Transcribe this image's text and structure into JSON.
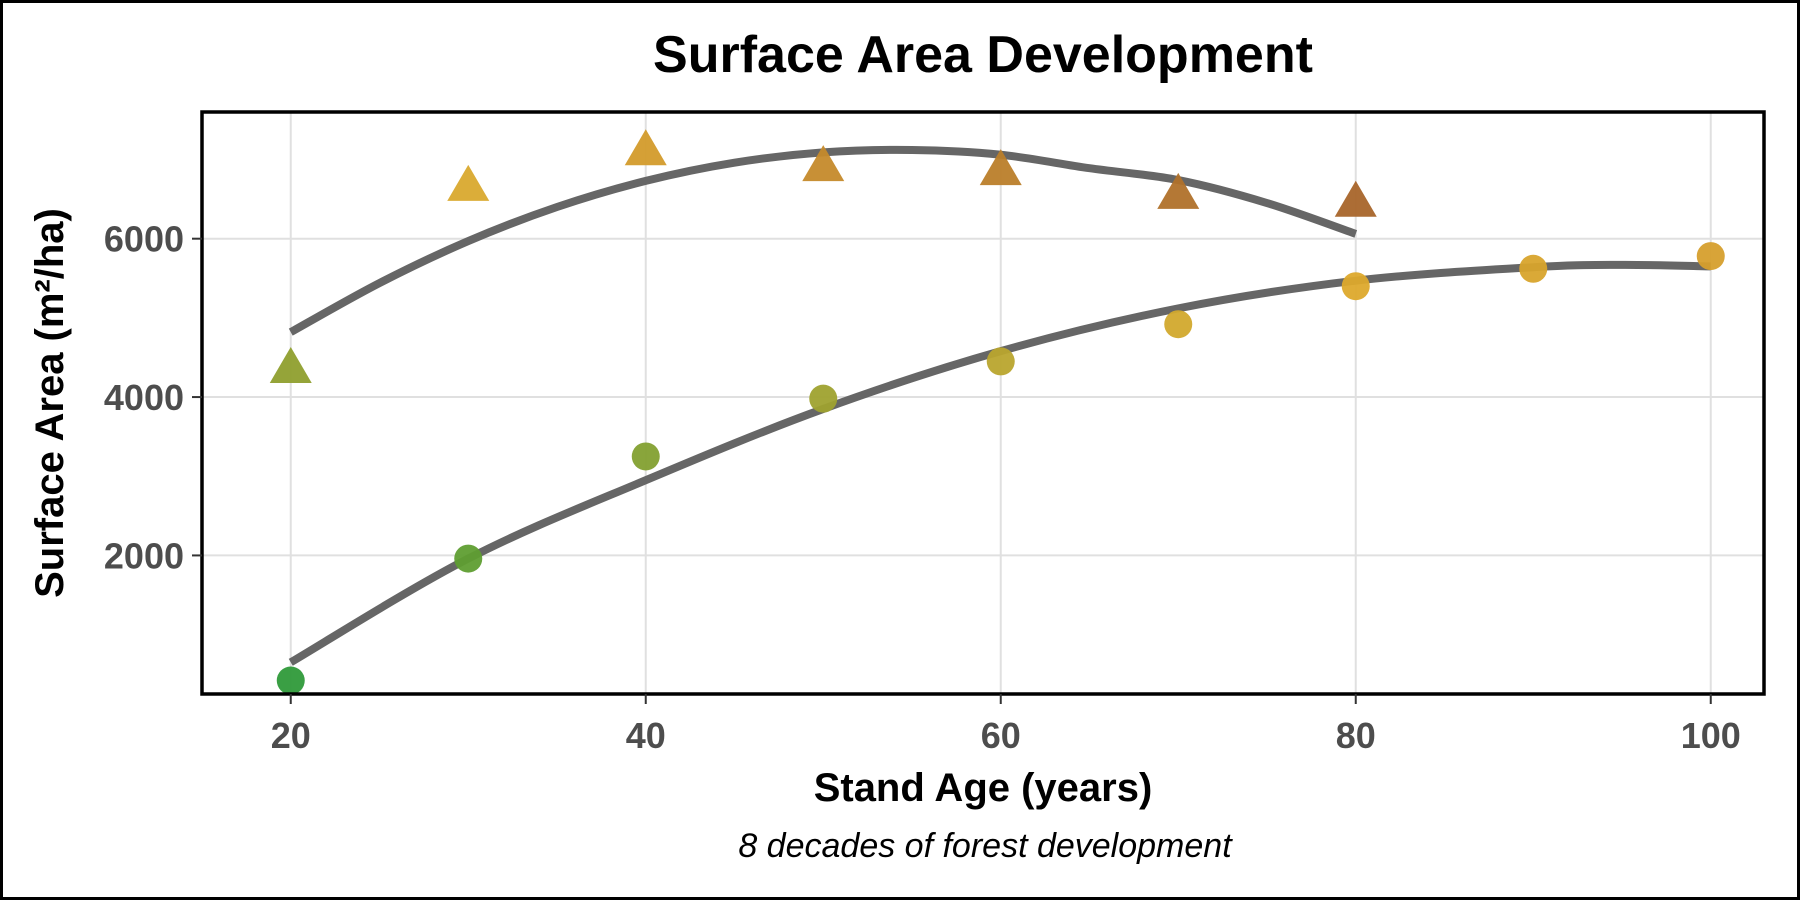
{
  "chart_data": {
    "type": "scatter",
    "title": "Surface Area Development",
    "xlabel": "Stand Age (years)",
    "ylabel": "Surface Area (m²/ha)",
    "caption": "8 decades of forest development",
    "xlim": [
      15,
      103
    ],
    "ylim": [
      250,
      7600
    ],
    "x_ticks": [
      20,
      40,
      60,
      80,
      100
    ],
    "y_ticks": [
      2000,
      4000,
      6000
    ],
    "grid": true,
    "legend": "none",
    "series": [
      {
        "marker": "triangle",
        "points": [
          {
            "x": 20,
            "y": 4350,
            "color": "#8f9f2e"
          },
          {
            "x": 30,
            "y": 6650,
            "color": "#d9a92e"
          },
          {
            "x": 40,
            "y": 7100,
            "color": "#d39b2b"
          },
          {
            "x": 50,
            "y": 6900,
            "color": "#c58a2b"
          },
          {
            "x": 60,
            "y": 6850,
            "color": "#bb7e2a"
          },
          {
            "x": 70,
            "y": 6550,
            "color": "#b0712a"
          },
          {
            "x": 80,
            "y": 6450,
            "color": "#a8652a"
          }
        ],
        "trend": [
          {
            "x": 20,
            "y": 4820
          },
          {
            "x": 25,
            "y": 5440
          },
          {
            "x": 30,
            "y": 5970
          },
          {
            "x": 35,
            "y": 6400
          },
          {
            "x": 40,
            "y": 6730
          },
          {
            "x": 45,
            "y": 6960
          },
          {
            "x": 50,
            "y": 7090
          },
          {
            "x": 55,
            "y": 7120
          },
          {
            "x": 60,
            "y": 7060
          },
          {
            "x": 65,
            "y": 6890
          },
          {
            "x": 70,
            "y": 6740
          },
          {
            "x": 75,
            "y": 6450
          },
          {
            "x": 80,
            "y": 6060
          }
        ]
      },
      {
        "marker": "circle",
        "points": [
          {
            "x": 20,
            "y": 420,
            "color": "#2f9a3a"
          },
          {
            "x": 30,
            "y": 1960,
            "color": "#5f9e31"
          },
          {
            "x": 40,
            "y": 3250,
            "color": "#83a030"
          },
          {
            "x": 50,
            "y": 3980,
            "color": "#9fa22f"
          },
          {
            "x": 60,
            "y": 4450,
            "color": "#b9a52e"
          },
          {
            "x": 70,
            "y": 4920,
            "color": "#d2a92d"
          },
          {
            "x": 80,
            "y": 5400,
            "color": "#dda92c"
          },
          {
            "x": 90,
            "y": 5620,
            "color": "#d8a42c"
          },
          {
            "x": 100,
            "y": 5780,
            "color": "#d69f2d"
          }
        ],
        "trend": [
          {
            "x": 20,
            "y": 650
          },
          {
            "x": 30,
            "y": 1960
          },
          {
            "x": 40,
            "y": 2950
          },
          {
            "x": 50,
            "y": 3850
          },
          {
            "x": 60,
            "y": 4580
          },
          {
            "x": 70,
            "y": 5120
          },
          {
            "x": 80,
            "y": 5470
          },
          {
            "x": 90,
            "y": 5640
          },
          {
            "x": 95,
            "y": 5670
          },
          {
            "x": 100,
            "y": 5650
          }
        ]
      }
    ],
    "trend_color": "#666666"
  }
}
